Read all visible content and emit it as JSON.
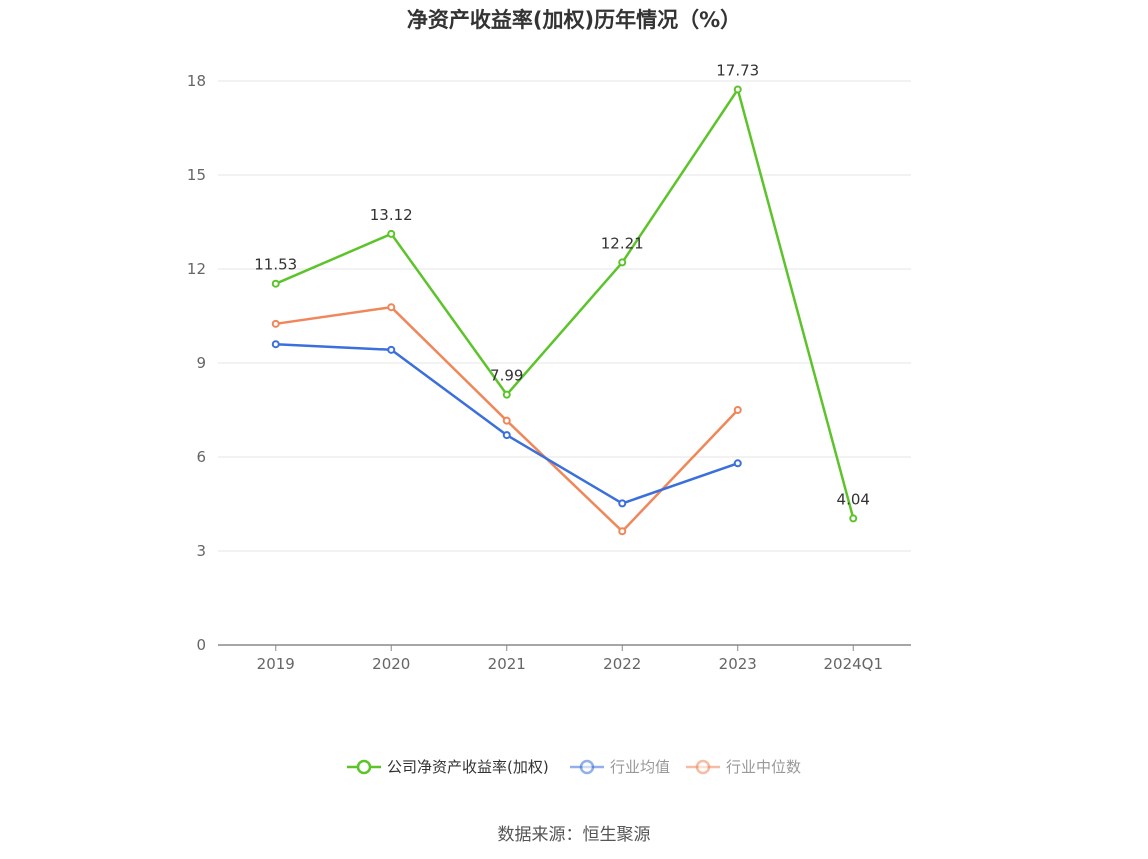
{
  "chart_data": {
    "type": "line",
    "title": "净资产收益率(加权)历年情况（%）",
    "categories": [
      "2019",
      "2020",
      "2021",
      "2022",
      "2023",
      "2024Q1"
    ],
    "ylim": [
      0,
      18
    ],
    "yticks": [
      0,
      3,
      6,
      9,
      12,
      15,
      18
    ],
    "grid": true,
    "legend_position": "bottom-center",
    "series": [
      {
        "name": "公司净资产收益率(加权)",
        "color": "#5cc42a",
        "values": [
          11.53,
          13.12,
          7.99,
          12.21,
          17.73,
          4.04
        ],
        "data_labels": [
          "11.53",
          "13.12",
          "7.99",
          "12.21",
          "17.73",
          "4.04"
        ]
      },
      {
        "name": "行业均值",
        "color": "#3a6fdc",
        "values": [
          9.6,
          9.42,
          6.7,
          4.52,
          5.8,
          null
        ]
      },
      {
        "name": "行业中位数",
        "color": "#f0875a",
        "values": [
          10.25,
          10.78,
          7.16,
          3.63,
          7.5,
          null
        ]
      }
    ],
    "source": "数据来源：恒生聚源"
  }
}
